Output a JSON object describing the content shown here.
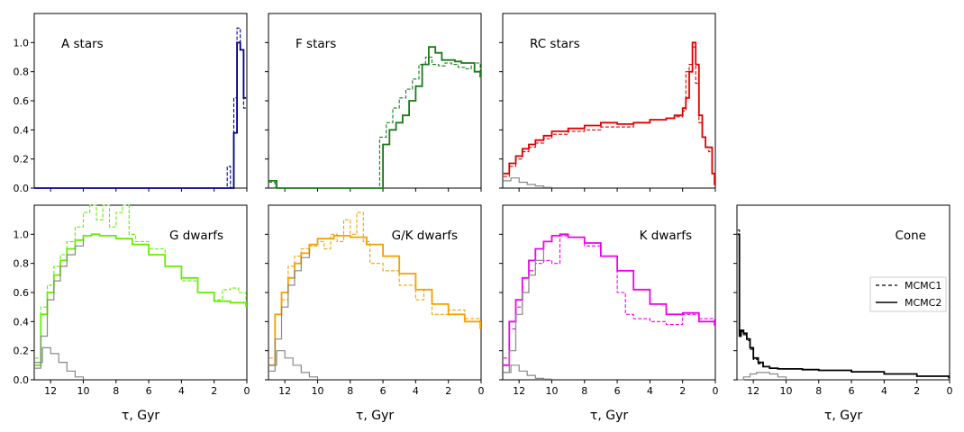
{
  "figure": {
    "xlabel": "τ,  Gyr",
    "legend": {
      "position": "right",
      "entries": [
        {
          "label": "MCMC1",
          "style": "dashed"
        },
        {
          "label": "MCMC2",
          "style": "solid"
        }
      ]
    }
  },
  "chart_data": [
    {
      "type": "line",
      "title": "A stars",
      "color": "#00008b",
      "xlim": [
        13,
        0
      ],
      "ylim": [
        0,
        1.2
      ],
      "yticks": [
        0,
        0.2,
        0.4,
        0.6,
        0.8,
        1.0
      ],
      "xticks": [
        12,
        10,
        8,
        6,
        4,
        2,
        0
      ],
      "show_ylabels": true,
      "show_xlabels": false,
      "series": [
        {
          "style": "solid",
          "x": [
            13,
            1.0,
            0.8,
            0.8,
            0.6,
            0.6,
            0.4,
            0.4,
            0.2,
            0.2,
            0.05
          ],
          "y": [
            0,
            0,
            0,
            0.38,
            0.38,
            1.0,
            1.0,
            0.95,
            0.95,
            0.62,
            0.62
          ]
        },
        {
          "style": "dashed",
          "x": [
            13,
            1.2,
            1.2,
            1.0,
            1.0,
            0.8,
            0.8,
            0.6,
            0.6,
            0.4,
            0.4,
            0.2,
            0.2,
            0.05
          ],
          "y": [
            0,
            0,
            0.15,
            0.15,
            0,
            0,
            0.62,
            0.62,
            1.1,
            1.1,
            0.95,
            0.95,
            0.55,
            0.55
          ]
        }
      ]
    },
    {
      "type": "line",
      "title": "F stars",
      "color": "#1a7a1a",
      "xlim": [
        13,
        0
      ],
      "ylim": [
        0,
        1.2
      ],
      "yticks": [
        0,
        0.2,
        0.4,
        0.6,
        0.8,
        1.0
      ],
      "xticks": [
        12,
        10,
        8,
        6,
        4,
        2,
        0
      ],
      "show_ylabels": false,
      "show_xlabels": false,
      "series": [
        {
          "style": "solid",
          "x": [
            13,
            12.5,
            6.4,
            6.0,
            5.6,
            5.2,
            4.8,
            4.4,
            4.0,
            3.6,
            3.2,
            2.8,
            2.4,
            2.0,
            1.6,
            1.2,
            0.8,
            0.4,
            0.05
          ],
          "y": [
            0.05,
            0,
            0,
            0.3,
            0.4,
            0.45,
            0.5,
            0.6,
            0.7,
            0.85,
            0.97,
            0.93,
            0.88,
            0.88,
            0.87,
            0.86,
            0.86,
            0.8,
            0.76
          ]
        },
        {
          "style": "dashed",
          "x": [
            13,
            12.6,
            6.6,
            6.2,
            5.8,
            5.4,
            5.0,
            4.6,
            4.2,
            3.8,
            3.4,
            3.0,
            2.6,
            2.2,
            1.8,
            1.4,
            1.0,
            0.6,
            0.05
          ],
          "y": [
            0.04,
            0,
            0,
            0.35,
            0.45,
            0.55,
            0.62,
            0.68,
            0.75,
            0.85,
            0.9,
            0.85,
            0.84,
            0.86,
            0.85,
            0.83,
            0.82,
            0.86,
            0.8
          ]
        }
      ]
    },
    {
      "type": "line",
      "title": "RC stars",
      "color": "#dd0000",
      "xlim": [
        13,
        0
      ],
      "ylim": [
        0,
        1.2
      ],
      "yticks": [
        0,
        0.2,
        0.4,
        0.6,
        0.8,
        1.0
      ],
      "xticks": [
        12,
        10,
        8,
        6,
        4,
        2,
        0
      ],
      "show_ylabels": false,
      "show_xlabels": false,
      "series": [
        {
          "style": "solid",
          "x": [
            12.95,
            12.6,
            12.2,
            11.8,
            11.4,
            11.0,
            10.5,
            10.0,
            9.0,
            8.0,
            7.0,
            6.0,
            5.0,
            4.0,
            3.0,
            2.5,
            2.0,
            1.8,
            1.6,
            1.4,
            1.2,
            1.0,
            0.8,
            0.6,
            0.4,
            0.2,
            0.05
          ],
          "y": [
            0.1,
            0.17,
            0.22,
            0.27,
            0.3,
            0.33,
            0.36,
            0.39,
            0.41,
            0.43,
            0.45,
            0.44,
            0.45,
            0.47,
            0.48,
            0.5,
            0.55,
            0.62,
            0.8,
            1.0,
            0.85,
            0.5,
            0.35,
            0.28,
            0.28,
            0.1,
            0.02
          ]
        },
        {
          "style": "dashed",
          "x": [
            12.95,
            12.6,
            12.2,
            11.8,
            11.4,
            11.0,
            10.5,
            10.0,
            9.0,
            8.0,
            7.0,
            6.0,
            5.0,
            4.0,
            3.0,
            2.5,
            2.0,
            1.8,
            1.6,
            1.4,
            1.2,
            1.0,
            0.8,
            0.6,
            0.4,
            0.2,
            0.05
          ],
          "y": [
            0.08,
            0.15,
            0.2,
            0.25,
            0.28,
            0.31,
            0.34,
            0.37,
            0.39,
            0.4,
            0.42,
            0.42,
            0.45,
            0.47,
            0.48,
            0.49,
            0.53,
            0.8,
            0.85,
            0.97,
            0.72,
            0.45,
            0.35,
            0.28,
            0.25,
            0.1,
            0.02
          ]
        },
        {
          "style": "solid",
          "color": "#888888",
          "x": [
            12.95,
            12.5,
            12.0,
            11.5,
            11.0,
            10.5,
            10.0
          ],
          "y": [
            0.05,
            0.07,
            0.04,
            0.025,
            0.015,
            0.005,
            0
          ]
        }
      ]
    },
    {
      "type": "line",
      "title": "G dwarfs",
      "color": "#66ee00",
      "xlim": [
        13,
        0
      ],
      "ylim": [
        0,
        1.2
      ],
      "yticks": [
        0,
        0.2,
        0.4,
        0.6,
        0.8,
        1.0
      ],
      "xticks": [
        12,
        10,
        8,
        6,
        4,
        2,
        0
      ],
      "show_ylabels": true,
      "show_xlabels": true,
      "series": [
        {
          "style": "solid",
          "x": [
            12.95,
            12.6,
            12.2,
            11.8,
            11.4,
            11.0,
            10.5,
            10.0,
            9.5,
            9.0,
            8.0,
            7.0,
            6.0,
            5.0,
            4.0,
            3.0,
            2.0,
            1.0,
            0.05
          ],
          "y": [
            0.1,
            0.45,
            0.6,
            0.72,
            0.82,
            0.9,
            0.96,
            0.99,
            1.0,
            0.99,
            0.97,
            0.93,
            0.86,
            0.78,
            0.7,
            0.6,
            0.54,
            0.53,
            0.5
          ]
        },
        {
          "style": "dashed",
          "x": [
            12.95,
            12.6,
            12.2,
            11.8,
            11.4,
            11.0,
            10.5,
            10.0,
            9.6,
            9.2,
            8.8,
            8.4,
            8.0,
            7.6,
            7.2,
            6.8,
            6.0,
            5.0,
            4.0,
            3.0,
            2.0,
            1.5,
            1.0,
            0.5,
            0.05
          ],
          "y": [
            0.15,
            0.5,
            0.65,
            0.78,
            0.86,
            0.95,
            1.05,
            1.15,
            1.2,
            1.1,
            1.2,
            1.05,
            1.15,
            1.2,
            1.0,
            0.95,
            0.9,
            0.78,
            0.68,
            0.6,
            0.55,
            0.62,
            0.63,
            0.6,
            0.5
          ]
        },
        {
          "style": "solid",
          "color": "#888888",
          "x": [
            12.95,
            12.5,
            12.0,
            11.5,
            11.0,
            10.5,
            10.0
          ],
          "y": [
            0.12,
            0.22,
            0.18,
            0.12,
            0.06,
            0.02,
            0
          ]
        },
        {
          "style": "solid",
          "color": "#888888",
          "x": [
            12.95,
            12.6,
            12.2,
            11.8,
            11.4,
            11.0,
            10.5,
            10.0
          ],
          "y": [
            0.08,
            0.3,
            0.55,
            0.68,
            0.78,
            0.86,
            0.92,
            0.97
          ]
        }
      ]
    },
    {
      "type": "line",
      "title": "G/K dwarfs",
      "color": "#f5a000",
      "xlim": [
        13,
        0
      ],
      "ylim": [
        0,
        1.2
      ],
      "yticks": [
        0,
        0.2,
        0.4,
        0.6,
        0.8,
        1.0
      ],
      "xticks": [
        12,
        10,
        8,
        6,
        4,
        2,
        0
      ],
      "show_ylabels": false,
      "show_xlabels": true,
      "series": [
        {
          "style": "solid",
          "x": [
            12.95,
            12.6,
            12.2,
            11.8,
            11.4,
            11.0,
            10.5,
            10.0,
            9.0,
            8.0,
            7.0,
            6.0,
            5.0,
            4.0,
            3.0,
            2.0,
            1.0,
            0.05
          ],
          "y": [
            0.1,
            0.45,
            0.6,
            0.7,
            0.8,
            0.87,
            0.93,
            0.97,
            0.99,
            0.98,
            0.93,
            0.85,
            0.73,
            0.62,
            0.52,
            0.45,
            0.4,
            0.35
          ]
        },
        {
          "style": "dashed",
          "x": [
            12.95,
            12.6,
            12.2,
            11.8,
            11.4,
            11.0,
            10.5,
            10.0,
            9.6,
            9.2,
            8.8,
            8.4,
            8.0,
            7.6,
            7.2,
            6.8,
            6.0,
            5.0,
            4.0,
            3.5,
            3.0,
            2.0,
            1.0,
            0.05
          ],
          "y": [
            0.15,
            0.45,
            0.55,
            0.78,
            0.85,
            0.9,
            0.92,
            0.95,
            0.9,
            1.0,
            0.95,
            1.1,
            1.0,
            1.15,
            0.95,
            0.8,
            0.75,
            0.65,
            0.55,
            0.62,
            0.45,
            0.48,
            0.42,
            0.38
          ]
        },
        {
          "style": "solid",
          "color": "#888888",
          "x": [
            12.95,
            12.5,
            12.0,
            11.5,
            11.0,
            10.5,
            10.0
          ],
          "y": [
            0.1,
            0.2,
            0.15,
            0.1,
            0.05,
            0.02,
            0
          ]
        },
        {
          "style": "solid",
          "color": "#888888",
          "x": [
            12.95,
            12.6,
            12.2,
            11.8,
            11.4,
            11.0,
            10.5
          ],
          "y": [
            0.06,
            0.28,
            0.5,
            0.65,
            0.75,
            0.84,
            0.9
          ]
        }
      ]
    },
    {
      "type": "line",
      "title": "K dwarfs",
      "color": "#ee00ee",
      "xlim": [
        13,
        0
      ],
      "ylim": [
        0,
        1.2
      ],
      "yticks": [
        0,
        0.2,
        0.4,
        0.6,
        0.8,
        1.0
      ],
      "xticks": [
        12,
        10,
        8,
        6,
        4,
        2,
        0
      ],
      "show_ylabels": false,
      "show_xlabels": true,
      "series": [
        {
          "style": "solid",
          "x": [
            12.95,
            12.6,
            12.2,
            11.8,
            11.4,
            11.0,
            10.5,
            10.0,
            9.5,
            9.0,
            8.0,
            7.0,
            6.0,
            5.0,
            4.0,
            3.0,
            2.0,
            1.0,
            0.05
          ],
          "y": [
            0.1,
            0.4,
            0.55,
            0.7,
            0.82,
            0.9,
            0.95,
            0.99,
            1.0,
            0.98,
            0.94,
            0.85,
            0.75,
            0.62,
            0.52,
            0.45,
            0.46,
            0.4,
            0.37
          ]
        },
        {
          "style": "dashed",
          "x": [
            12.95,
            12.6,
            12.2,
            11.8,
            11.4,
            11.0,
            10.5,
            10.0,
            9.5,
            9.0,
            8.0,
            7.0,
            6.0,
            5.5,
            5.0,
            4.0,
            3.0,
            2.0,
            1.0,
            0.05
          ],
          "y": [
            0.15,
            0.35,
            0.5,
            0.6,
            0.75,
            0.8,
            0.82,
            0.8,
            0.99,
            0.98,
            0.92,
            0.85,
            0.6,
            0.45,
            0.42,
            0.4,
            0.38,
            0.45,
            0.42,
            0.4
          ]
        },
        {
          "style": "solid",
          "color": "#888888",
          "x": [
            12.95,
            12.5,
            12.0,
            11.5,
            11.0,
            10.5,
            10.0
          ],
          "y": [
            0.05,
            0.1,
            0.06,
            0.03,
            0.01,
            0.005,
            0
          ]
        },
        {
          "style": "solid",
          "color": "#888888",
          "x": [
            12.95,
            12.6,
            12.2,
            11.8,
            11.4,
            11.0,
            10.5
          ],
          "y": [
            0.05,
            0.2,
            0.45,
            0.6,
            0.72,
            0.82,
            0.9
          ]
        }
      ]
    },
    {
      "type": "line",
      "title": "Cone",
      "color": "#000000",
      "xlim": [
        13,
        0
      ],
      "ylim": [
        0,
        1.2
      ],
      "yticks": [
        0,
        0.2,
        0.4,
        0.6,
        0.8,
        1.0
      ],
      "xticks": [
        12,
        10,
        8,
        6,
        4,
        2,
        0
      ],
      "show_ylabels": false,
      "show_xlabels": true,
      "series": [
        {
          "style": "solid",
          "x": [
            12.95,
            12.85,
            12.75,
            12.6,
            12.4,
            12.2,
            12.0,
            11.7,
            11.4,
            11.0,
            10.5,
            10.0,
            9.0,
            8.0,
            6.0,
            4.0,
            2.0,
            0.05
          ],
          "y": [
            1.0,
            0.3,
            0.34,
            0.32,
            0.28,
            0.22,
            0.15,
            0.12,
            0.09,
            0.08,
            0.075,
            0.075,
            0.07,
            0.065,
            0.055,
            0.04,
            0.025,
            0.01
          ]
        },
        {
          "style": "dashed",
          "x": [
            12.95,
            12.85,
            12.75,
            12.6,
            12.4,
            12.2,
            12.0,
            11.7,
            11.4,
            11.0,
            10.5,
            10.0,
            9.0,
            8.0,
            6.0,
            4.0,
            2.0,
            0.05
          ],
          "y": [
            1.03,
            0.3,
            0.33,
            0.31,
            0.27,
            0.21,
            0.14,
            0.11,
            0.09,
            0.08,
            0.075,
            0.075,
            0.07,
            0.065,
            0.055,
            0.04,
            0.025,
            0.01
          ]
        },
        {
          "style": "solid",
          "color": "#888888",
          "x": [
            12.95,
            12.6,
            12.2,
            11.8,
            11.4,
            11.0,
            10.5,
            10.0
          ],
          "y": [
            0.0,
            0.02,
            0.04,
            0.05,
            0.05,
            0.04,
            0.02,
            0.0
          ]
        }
      ]
    }
  ]
}
